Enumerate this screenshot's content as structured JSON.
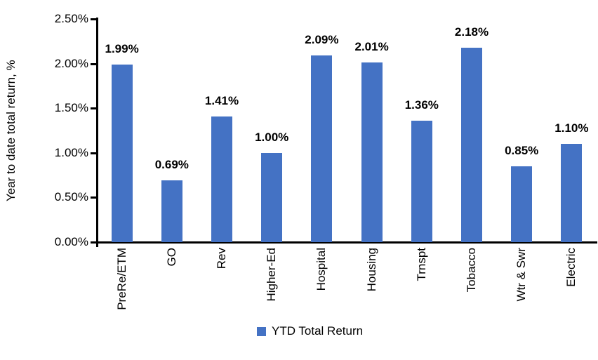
{
  "chart_data": {
    "type": "bar",
    "categories": [
      "PreRe/ETM",
      "GO",
      "Rev",
      "Higher-Ed",
      "Hospital",
      "Housing",
      "Trnspt",
      "Tobacco",
      "Wtr & Swr",
      "Electric"
    ],
    "values": [
      1.99,
      0.69,
      1.41,
      1.0,
      2.09,
      2.01,
      1.36,
      2.18,
      0.85,
      1.1
    ],
    "data_labels": [
      "1.99%",
      "0.69%",
      "1.41%",
      "1.00%",
      "2.09%",
      "2.01%",
      "1.36%",
      "2.18%",
      "0.85%",
      "1.10%"
    ],
    "title": "",
    "xlabel": "",
    "ylabel": "Year to date total return, %",
    "ylim": [
      0,
      2.5
    ],
    "y_ticks": [
      "0.00%",
      "0.50%",
      "1.00%",
      "1.50%",
      "2.00%",
      "2.50%"
    ],
    "grid": false,
    "legend_position": "bottom",
    "legend": [
      "YTD Total Return"
    ],
    "bar_color": "#4472C4",
    "axis_color": "#000000",
    "label_color": "#000000"
  }
}
